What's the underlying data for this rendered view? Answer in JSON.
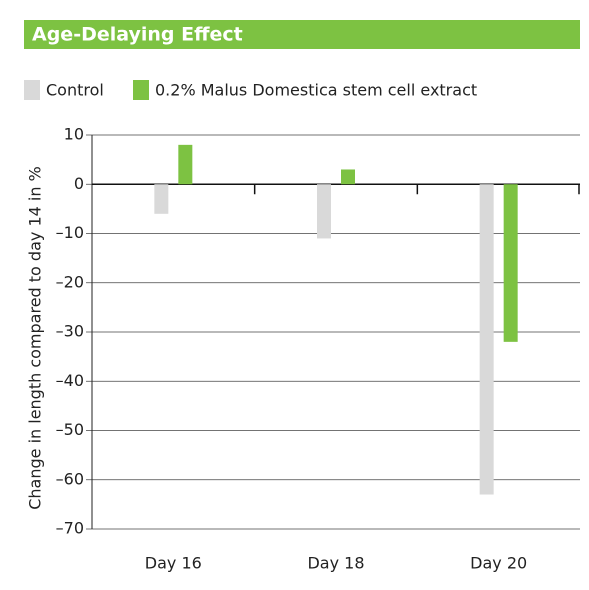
{
  "chart_data": {
    "type": "bar",
    "title": "Age-Delaying Effect",
    "y_label": "Change in length compared to day 14 in %",
    "categories": [
      "Day 16",
      "Day 18",
      "Day 20"
    ],
    "series": [
      {
        "name": "Control",
        "color": "#d9d9d9",
        "values": [
          -6,
          -11,
          -63
        ]
      },
      {
        "name": "0.2% Malus Domestica stem cell extract",
        "color": "#7dc242",
        "values": [
          8,
          3,
          -32
        ]
      }
    ],
    "ylim": [
      -70,
      10
    ],
    "yticks": [
      10,
      0,
      {
        "value": -10,
        "label": "–10"
      },
      {
        "value": -20,
        "label": "–20"
      },
      {
        "value": -30,
        "label": "–30"
      },
      {
        "value": -40,
        "label": "–40"
      },
      {
        "value": -50,
        "label": "–50"
      },
      {
        "value": -60,
        "label": "–60"
      },
      {
        "value": -70,
        "label": "–70"
      }
    ],
    "grid": true
  }
}
